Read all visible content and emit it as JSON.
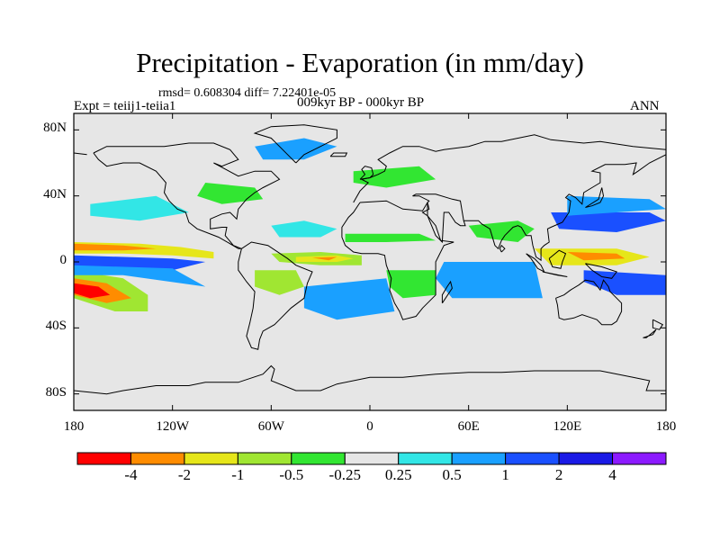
{
  "title": "Precipitation - Evaporation (in mm/day)",
  "stats_text": "rmsd= 0.608304 diff= 7.22401e-05",
  "left_label": "Expt = teiij1-teiia1",
  "center_label": "009kyr BP - 000kyr BP",
  "right_label": "ANN",
  "chart_data": {
    "type": "contour-map",
    "variable": "Precipitation - Evaporation",
    "units": "mm/day",
    "x_ticks": [
      {
        "lon": -180,
        "label": "180"
      },
      {
        "lon": -120,
        "label": "120W"
      },
      {
        "lon": -60,
        "label": "60W"
      },
      {
        "lon": 0,
        "label": "0"
      },
      {
        "lon": 60,
        "label": "60E"
      },
      {
        "lon": 120,
        "label": "120E"
      },
      {
        "lon": 180,
        "label": "180"
      }
    ],
    "y_ticks": [
      {
        "lat": 80,
        "label": "80N"
      },
      {
        "lat": 40,
        "label": "40N"
      },
      {
        "lat": 0,
        "label": "0"
      },
      {
        "lat": -40,
        "label": "40S"
      },
      {
        "lat": -80,
        "label": "80S"
      }
    ],
    "xlim": [
      -180,
      180
    ],
    "ylim": [
      -90,
      90
    ],
    "levels": [
      -4,
      -2,
      -1,
      -0.5,
      -0.25,
      0.25,
      0.5,
      1,
      2,
      4
    ],
    "level_labels": [
      "-4",
      "-2",
      "-1",
      "-0.5",
      "-0.25",
      "0.25",
      "0.5",
      "1",
      "2",
      "4"
    ],
    "colors": [
      "#ff0000",
      "#ff8c00",
      "#e6e61a",
      "#a0e632",
      "#32e632",
      "#e6e6e6",
      "#32e6e6",
      "#1aa0ff",
      "#1a50ff",
      "#1a1ae6",
      "#8c1aff"
    ],
    "regions": [
      {
        "desc": "central Pacific ITCZ band",
        "level": "-2_-1",
        "pts": [
          [
            -180,
            12
          ],
          [
            -140,
            11
          ],
          [
            -115,
            9
          ],
          [
            -95,
            6
          ],
          [
            -95,
            2
          ],
          [
            -120,
            4
          ],
          [
            -150,
            5
          ],
          [
            -180,
            5
          ]
        ]
      },
      {
        "desc": "central Pacific core",
        "level": "-4_-2",
        "pts": [
          [
            -180,
            11
          ],
          [
            -150,
            10
          ],
          [
            -130,
            8
          ],
          [
            -150,
            7
          ],
          [
            -180,
            7
          ]
        ]
      },
      {
        "desc": "south Pacific band",
        "level": "-1_-0.5",
        "pts": [
          [
            -180,
            -5
          ],
          [
            -150,
            -10
          ],
          [
            -135,
            -20
          ],
          [
            -135,
            -30
          ],
          [
            -155,
            -30
          ],
          [
            -180,
            -22
          ]
        ]
      },
      {
        "desc": "south Pacific core",
        "level": "-4_-2",
        "pts": [
          [
            -180,
            -10
          ],
          [
            -160,
            -13
          ],
          [
            -145,
            -22
          ],
          [
            -160,
            -25
          ],
          [
            -180,
            -20
          ]
        ]
      },
      {
        "desc": "south Pacific inner",
        "level": "lt_-4",
        "pts": [
          [
            -180,
            -13
          ],
          [
            -165,
            -15
          ],
          [
            -158,
            -20
          ],
          [
            -170,
            -22
          ],
          [
            -180,
            -19
          ]
        ]
      },
      {
        "desc": "equatorial Atlantic band",
        "level": "-1_-0.5",
        "pts": [
          [
            -60,
            5
          ],
          [
            -30,
            6
          ],
          [
            -5,
            4
          ],
          [
            -5,
            -2
          ],
          [
            -30,
            -2
          ],
          [
            -55,
            0
          ]
        ]
      },
      {
        "desc": "equatorial Atlantic core",
        "level": "-2_-1",
        "pts": [
          [
            -45,
            3
          ],
          [
            -20,
            4
          ],
          [
            -10,
            2
          ],
          [
            -20,
            0
          ],
          [
            -45,
            0
          ]
        ]
      },
      {
        "desc": "equatorial Atlantic inner",
        "level": "-4_-2",
        "pts": [
          [
            -35,
            2.5
          ],
          [
            -20,
            3
          ],
          [
            -25,
            1
          ]
        ]
      },
      {
        "desc": "north Atlantic positive",
        "level": "0.25_0.5",
        "pts": [
          [
            -60,
            22
          ],
          [
            -40,
            25
          ],
          [
            -20,
            20
          ],
          [
            -30,
            15
          ],
          [
            -55,
            15
          ]
        ]
      },
      {
        "desc": "Sahel",
        "level": "-0.5_-0.25",
        "pts": [
          [
            -15,
            17
          ],
          [
            30,
            17
          ],
          [
            40,
            13
          ],
          [
            10,
            12
          ],
          [
            -15,
            12
          ]
        ]
      },
      {
        "desc": "Indian monsoon",
        "level": "-0.5_-0.25",
        "pts": [
          [
            60,
            22
          ],
          [
            90,
            25
          ],
          [
            100,
            20
          ],
          [
            90,
            12
          ],
          [
            65,
            15
          ]
        ]
      },
      {
        "desc": "Indian ocean positive",
        "level": "1_2",
        "pts": [
          [
            50,
            -5
          ],
          [
            95,
            -5
          ],
          [
            100,
            -15
          ],
          [
            60,
            -15
          ],
          [
            48,
            -10
          ]
        ]
      },
      {
        "desc": "Indian ocean positive outer",
        "level": "0.5_1",
        "pts": [
          [
            45,
            0
          ],
          [
            100,
            0
          ],
          [
            105,
            -22
          ],
          [
            50,
            -22
          ],
          [
            40,
            -10
          ]
        ]
      },
      {
        "desc": "maritime continent",
        "level": "-2_-1",
        "pts": [
          [
            100,
            8
          ],
          [
            150,
            8
          ],
          [
            170,
            3
          ],
          [
            150,
            -2
          ],
          [
            110,
            -2
          ]
        ]
      },
      {
        "desc": "maritime continent core",
        "level": "-4_-2",
        "pts": [
          [
            120,
            6
          ],
          [
            150,
            5
          ],
          [
            155,
            2
          ],
          [
            130,
            1
          ]
        ]
      },
      {
        "desc": "west Pacific positive",
        "level": "1_2",
        "pts": [
          [
            110,
            30
          ],
          [
            170,
            30
          ],
          [
            180,
            25
          ],
          [
            150,
            18
          ],
          [
            115,
            20
          ]
        ]
      },
      {
        "desc": "NW Pacific positive",
        "level": "0.5_1",
        "pts": [
          [
            120,
            40
          ],
          [
            170,
            38
          ],
          [
            180,
            32
          ],
          [
            120,
            28
          ]
        ]
      },
      {
        "desc": "south Pacific positive",
        "level": "1_2",
        "pts": [
          [
            130,
            -5
          ],
          [
            180,
            -8
          ],
          [
            180,
            -20
          ],
          [
            150,
            -20
          ],
          [
            130,
            -12
          ]
        ]
      },
      {
        "desc": "east Pacific positive",
        "level": "1_2",
        "pts": [
          [
            -180,
            4
          ],
          [
            -120,
            2
          ],
          [
            -100,
            0
          ],
          [
            -120,
            -5
          ],
          [
            -180,
            -3
          ]
        ]
      },
      {
        "desc": "SE Pacific positive",
        "level": "0.5_1",
        "pts": [
          [
            -180,
            -2
          ],
          [
            -120,
            -4
          ],
          [
            -100,
            -15
          ],
          [
            -150,
            -8
          ],
          [
            -180,
            -8
          ]
        ]
      },
      {
        "desc": "north Pacific positive",
        "level": "0.25_0.5",
        "pts": [
          [
            -170,
            35
          ],
          [
            -130,
            40
          ],
          [
            -110,
            30
          ],
          [
            -140,
            25
          ],
          [
            -170,
            28
          ]
        ]
      },
      {
        "desc": "Amazon",
        "level": "-1_-0.5",
        "pts": [
          [
            -70,
            -5
          ],
          [
            -45,
            -5
          ],
          [
            -40,
            -15
          ],
          [
            -55,
            -20
          ],
          [
            -70,
            -15
          ]
        ]
      },
      {
        "desc": "S Atlantic positive",
        "level": "0.5_1",
        "pts": [
          [
            -40,
            -15
          ],
          [
            10,
            -10
          ],
          [
            15,
            -30
          ],
          [
            -20,
            -35
          ],
          [
            -40,
            -28
          ]
        ]
      },
      {
        "desc": "N America",
        "level": "-0.5_-0.25",
        "pts": [
          [
            -100,
            48
          ],
          [
            -70,
            45
          ],
          [
            -65,
            38
          ],
          [
            -90,
            35
          ],
          [
            -105,
            40
          ]
        ]
      },
      {
        "desc": "Greenland / Arctic",
        "level": "0.5_1",
        "pts": [
          [
            -70,
            70
          ],
          [
            -40,
            75
          ],
          [
            -20,
            70
          ],
          [
            -40,
            62
          ],
          [
            -65,
            62
          ]
        ]
      },
      {
        "desc": "Europe",
        "level": "-0.5_-0.25",
        "pts": [
          [
            -10,
            55
          ],
          [
            30,
            58
          ],
          [
            40,
            50
          ],
          [
            10,
            45
          ],
          [
            -10,
            48
          ]
        ]
      },
      {
        "desc": "Africa south",
        "level": "-0.5_-0.25",
        "pts": [
          [
            10,
            -5
          ],
          [
            40,
            -5
          ],
          [
            40,
            -20
          ],
          [
            20,
            -22
          ],
          [
            12,
            -15
          ]
        ]
      }
    ]
  }
}
